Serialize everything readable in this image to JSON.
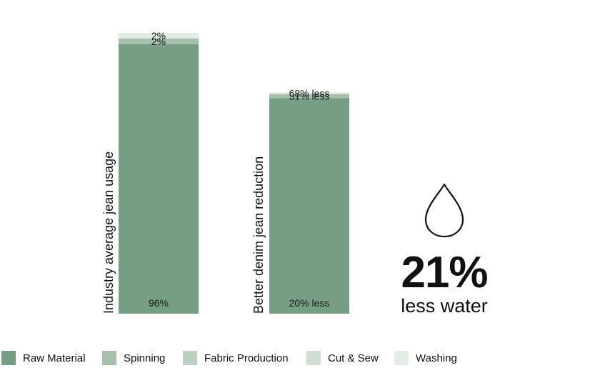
{
  "chart_data": {
    "type": "bar",
    "stacked": true,
    "categories": [
      "Industry average jean usage",
      "Better denim jean reduction"
    ],
    "value_unit": "share of industry-average water usage (%)",
    "ylim": [
      0,
      100
    ],
    "stages": [
      "Raw Material",
      "Spinning",
      "Fabric Production",
      "Cut & Sew",
      "Washing"
    ],
    "bars": [
      {
        "name": "Industry average jean usage",
        "segments": [
          {
            "stage": "Raw Material",
            "value": 96,
            "label": "96%"
          },
          {
            "stage": "Spinning",
            "value": 2,
            "label": "2%"
          },
          {
            "stage": "Washing",
            "value": 2,
            "label": "2%"
          }
        ]
      },
      {
        "name": "Better denim jean reduction",
        "segments": [
          {
            "stage": "Raw Material",
            "value": 76.8,
            "label": "20% less"
          },
          {
            "stage": "Spinning",
            "value": 1.4,
            "label": "31% less"
          },
          {
            "stage": "Washing",
            "value": 0.6,
            "label": "68% less"
          }
        ]
      }
    ],
    "legend": [
      {
        "name": "Raw Material",
        "color": "#769e82"
      },
      {
        "name": "Spinning",
        "color": "#a5bfaa"
      },
      {
        "name": "Fabric Production",
        "color": "#bcd0c1"
      },
      {
        "name": "Cut & Sew",
        "color": "#cfded3"
      },
      {
        "name": "Washing",
        "color": "#e2ebe4"
      }
    ],
    "grid": false,
    "legend_position": "bottom"
  },
  "callout": {
    "icon": "water-drop-icon",
    "value": "21%",
    "text": "less water"
  }
}
